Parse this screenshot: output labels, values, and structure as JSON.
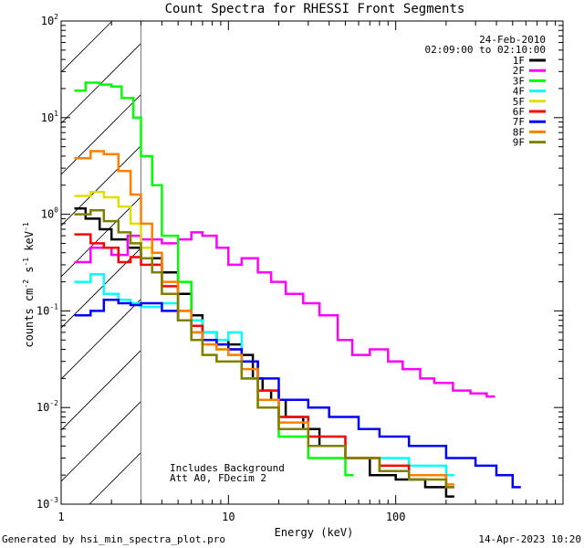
{
  "chart_data": {
    "type": "line",
    "title": "Count Spectra for RHESSI Front Segments",
    "xlabel": "Energy (keV)",
    "ylabel_parts": [
      "counts cm",
      "-2",
      " s",
      "-1",
      " keV",
      "-1"
    ],
    "xscale": "log",
    "yscale": "log",
    "xlim": [
      1,
      1000
    ],
    "ylim": [
      0.001,
      100
    ],
    "x_ticks": [
      {
        "value": 1,
        "label": "1"
      },
      {
        "value": 10,
        "label": "10"
      },
      {
        "value": 100,
        "label": "100"
      }
    ],
    "y_ticks": [
      {
        "value": 0.001,
        "base": "10",
        "exp": "-3"
      },
      {
        "value": 0.01,
        "base": "10",
        "exp": "-2"
      },
      {
        "value": 0.1,
        "base": "10",
        "exp": "-1"
      },
      {
        "value": 1,
        "base": "10",
        "exp": "0"
      },
      {
        "value": 10,
        "base": "10",
        "exp": "1"
      },
      {
        "value": 100,
        "base": "10",
        "exp": "2"
      }
    ],
    "date": "24-Feb-2010",
    "time_range": "02:09:00 to 02:10:00",
    "attenuation_energy": 3.0,
    "annotations": [
      "Includes Background",
      "Att A0, FDecim 2"
    ],
    "series": [
      {
        "name": "1F",
        "color": "#000000",
        "points": [
          [
            1.2,
            1.15
          ],
          [
            1.4,
            0.9
          ],
          [
            1.7,
            0.7
          ],
          [
            2.0,
            0.55
          ],
          [
            2.5,
            0.45
          ],
          [
            3.0,
            0.35
          ],
          [
            4.0,
            0.25
          ],
          [
            5.0,
            0.15
          ],
          [
            6.0,
            0.09
          ],
          [
            7.0,
            0.06
          ],
          [
            8.5,
            0.05
          ],
          [
            10,
            0.045
          ],
          [
            12,
            0.035
          ],
          [
            14,
            0.02
          ],
          [
            16,
            0.015
          ],
          [
            18,
            0.012
          ],
          [
            22,
            0.008
          ],
          [
            28,
            0.006
          ],
          [
            35,
            0.004
          ],
          [
            50,
            0.003
          ],
          [
            70,
            0.002
          ],
          [
            100,
            0.0018
          ],
          [
            150,
            0.0015
          ],
          [
            200,
            0.0012
          ]
        ]
      },
      {
        "name": "2F",
        "color": "#ff00ff",
        "points": [
          [
            1.2,
            0.32
          ],
          [
            1.5,
            0.45
          ],
          [
            2.0,
            0.38
          ],
          [
            2.5,
            0.6
          ],
          [
            3.0,
            0.55
          ],
          [
            4.0,
            0.5
          ],
          [
            5.0,
            0.55
          ],
          [
            6.0,
            0.65
          ],
          [
            7.0,
            0.6
          ],
          [
            8.5,
            0.45
          ],
          [
            10,
            0.3
          ],
          [
            12,
            0.35
          ],
          [
            15,
            0.25
          ],
          [
            18,
            0.2
          ],
          [
            22,
            0.15
          ],
          [
            28,
            0.12
          ],
          [
            35,
            0.09
          ],
          [
            45,
            0.05
          ],
          [
            55,
            0.035
          ],
          [
            70,
            0.04
          ],
          [
            90,
            0.03
          ],
          [
            110,
            0.025
          ],
          [
            140,
            0.02
          ],
          [
            170,
            0.018
          ],
          [
            220,
            0.015
          ],
          [
            280,
            0.014
          ],
          [
            350,
            0.013
          ]
        ]
      },
      {
        "name": "3F",
        "color": "#00ff00",
        "points": [
          [
            1.2,
            19
          ],
          [
            1.4,
            23
          ],
          [
            1.7,
            22
          ],
          [
            2.0,
            21
          ],
          [
            2.3,
            16
          ],
          [
            2.7,
            10
          ],
          [
            3.0,
            4.0
          ],
          [
            3.5,
            2.0
          ],
          [
            4.0,
            0.6
          ],
          [
            5.0,
            0.2
          ],
          [
            6.0,
            0.08
          ],
          [
            7.0,
            0.05
          ],
          [
            8.5,
            0.04
          ],
          [
            10,
            0.035
          ],
          [
            12,
            0.02
          ],
          [
            15,
            0.01
          ],
          [
            20,
            0.005
          ],
          [
            30,
            0.003
          ],
          [
            50,
            0.002
          ]
        ]
      },
      {
        "name": "4F",
        "color": "#00ffff",
        "points": [
          [
            1.2,
            0.2
          ],
          [
            1.5,
            0.24
          ],
          [
            1.8,
            0.15
          ],
          [
            2.2,
            0.13
          ],
          [
            2.6,
            0.12
          ],
          [
            3.0,
            0.11
          ],
          [
            4.0,
            0.12
          ],
          [
            5.0,
            0.1
          ],
          [
            6.0,
            0.08
          ],
          [
            7.0,
            0.06
          ],
          [
            8.5,
            0.05
          ],
          [
            10,
            0.06
          ],
          [
            12,
            0.03
          ],
          [
            15,
            0.015
          ],
          [
            20,
            0.008
          ],
          [
            30,
            0.005
          ],
          [
            50,
            0.003
          ],
          [
            80,
            0.003
          ],
          [
            120,
            0.0025
          ],
          [
            200,
            0.002
          ]
        ]
      },
      {
        "name": "5F",
        "color": "#e0e000",
        "points": [
          [
            1.2,
            1.55
          ],
          [
            1.5,
            1.7
          ],
          [
            1.8,
            1.5
          ],
          [
            2.2,
            1.2
          ],
          [
            2.6,
            0.8
          ],
          [
            3.0,
            0.45
          ],
          [
            3.5,
            0.3
          ],
          [
            4.0,
            0.15
          ],
          [
            5.0,
            0.08
          ],
          [
            6.0,
            0.05
          ],
          [
            7.0,
            0.035
          ],
          [
            8.5,
            0.03
          ],
          [
            10,
            0.03
          ],
          [
            12,
            0.02
          ],
          [
            15,
            0.01
          ],
          [
            20,
            0.006
          ],
          [
            30,
            0.004
          ],
          [
            50,
            0.003
          ],
          [
            80,
            0.0025
          ],
          [
            120,
            0.002
          ]
        ]
      },
      {
        "name": "6F",
        "color": "#ff0000",
        "points": [
          [
            1.2,
            0.62
          ],
          [
            1.5,
            0.5
          ],
          [
            1.8,
            0.45
          ],
          [
            2.2,
            0.32
          ],
          [
            2.6,
            0.36
          ],
          [
            3.0,
            0.3
          ],
          [
            4.0,
            0.18
          ],
          [
            5.0,
            0.1
          ],
          [
            6.0,
            0.07
          ],
          [
            7.0,
            0.05
          ],
          [
            8.5,
            0.045
          ],
          [
            10,
            0.04
          ],
          [
            12,
            0.03
          ],
          [
            15,
            0.015
          ],
          [
            20,
            0.008
          ],
          [
            30,
            0.005
          ],
          [
            50,
            0.003
          ],
          [
            80,
            0.0025
          ],
          [
            120,
            0.002
          ],
          [
            200,
            0.0015
          ]
        ]
      },
      {
        "name": "7F",
        "color": "#0000ff",
        "points": [
          [
            1.2,
            0.09
          ],
          [
            1.5,
            0.1
          ],
          [
            1.8,
            0.13
          ],
          [
            2.2,
            0.12
          ],
          [
            2.6,
            0.115
          ],
          [
            3.0,
            0.12
          ],
          [
            4.0,
            0.1
          ],
          [
            5.0,
            0.08
          ],
          [
            6.0,
            0.06
          ],
          [
            7.0,
            0.05
          ],
          [
            8.5,
            0.045
          ],
          [
            10,
            0.04
          ],
          [
            12,
            0.03
          ],
          [
            15,
            0.02
          ],
          [
            20,
            0.012
          ],
          [
            30,
            0.01
          ],
          [
            40,
            0.008
          ],
          [
            60,
            0.006
          ],
          [
            80,
            0.005
          ],
          [
            120,
            0.004
          ],
          [
            200,
            0.003
          ],
          [
            300,
            0.0025
          ],
          [
            400,
            0.002
          ],
          [
            500,
            0.0015
          ]
        ]
      },
      {
        "name": "8F",
        "color": "#ff8000",
        "points": [
          [
            1.2,
            3.8
          ],
          [
            1.5,
            4.5
          ],
          [
            1.8,
            4.2
          ],
          [
            2.2,
            2.8
          ],
          [
            2.6,
            1.6
          ],
          [
            3.0,
            0.8
          ],
          [
            3.5,
            0.4
          ],
          [
            4.0,
            0.2
          ],
          [
            5.0,
            0.1
          ],
          [
            6.0,
            0.06
          ],
          [
            7.0,
            0.045
          ],
          [
            8.5,
            0.04
          ],
          [
            10,
            0.035
          ],
          [
            12,
            0.025
          ],
          [
            15,
            0.012
          ],
          [
            20,
            0.007
          ],
          [
            30,
            0.004
          ],
          [
            50,
            0.003
          ],
          [
            80,
            0.0022
          ],
          [
            120,
            0.002
          ],
          [
            200,
            0.0016
          ]
        ]
      },
      {
        "name": "9F",
        "color": "#808000",
        "points": [
          [
            1.2,
            1.0
          ],
          [
            1.5,
            1.1
          ],
          [
            1.8,
            0.85
          ],
          [
            2.2,
            0.65
          ],
          [
            2.6,
            0.5
          ],
          [
            3.0,
            0.35
          ],
          [
            3.5,
            0.25
          ],
          [
            4.0,
            0.15
          ],
          [
            5.0,
            0.08
          ],
          [
            6.0,
            0.05
          ],
          [
            7.0,
            0.035
          ],
          [
            8.5,
            0.03
          ],
          [
            10,
            0.03
          ],
          [
            12,
            0.02
          ],
          [
            15,
            0.01
          ],
          [
            20,
            0.006
          ],
          [
            30,
            0.004
          ],
          [
            50,
            0.003
          ],
          [
            80,
            0.0022
          ],
          [
            120,
            0.0018
          ],
          [
            200,
            0.0015
          ]
        ]
      }
    ]
  },
  "footer": {
    "generated_by": "Generated by hsi_min_spectra_plot.pro",
    "timestamp": "14-Apr-2023 10:20"
  }
}
